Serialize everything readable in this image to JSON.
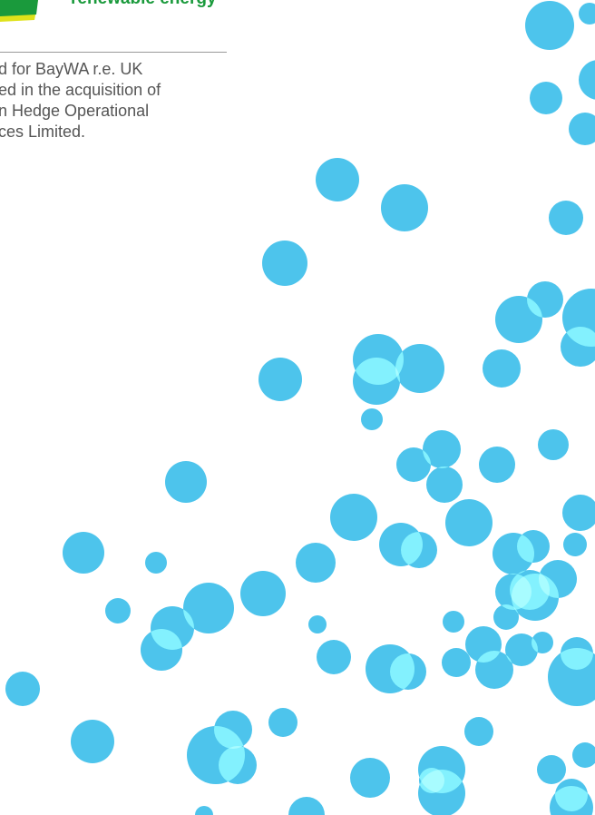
{
  "logo": {
    "tagline": "renewable energy"
  },
  "body": {
    "lines": [
      "d for BayWA r.e. UK",
      "ed in the acquisition of",
      "n Hedge Operational",
      "ces Limited."
    ]
  }
}
